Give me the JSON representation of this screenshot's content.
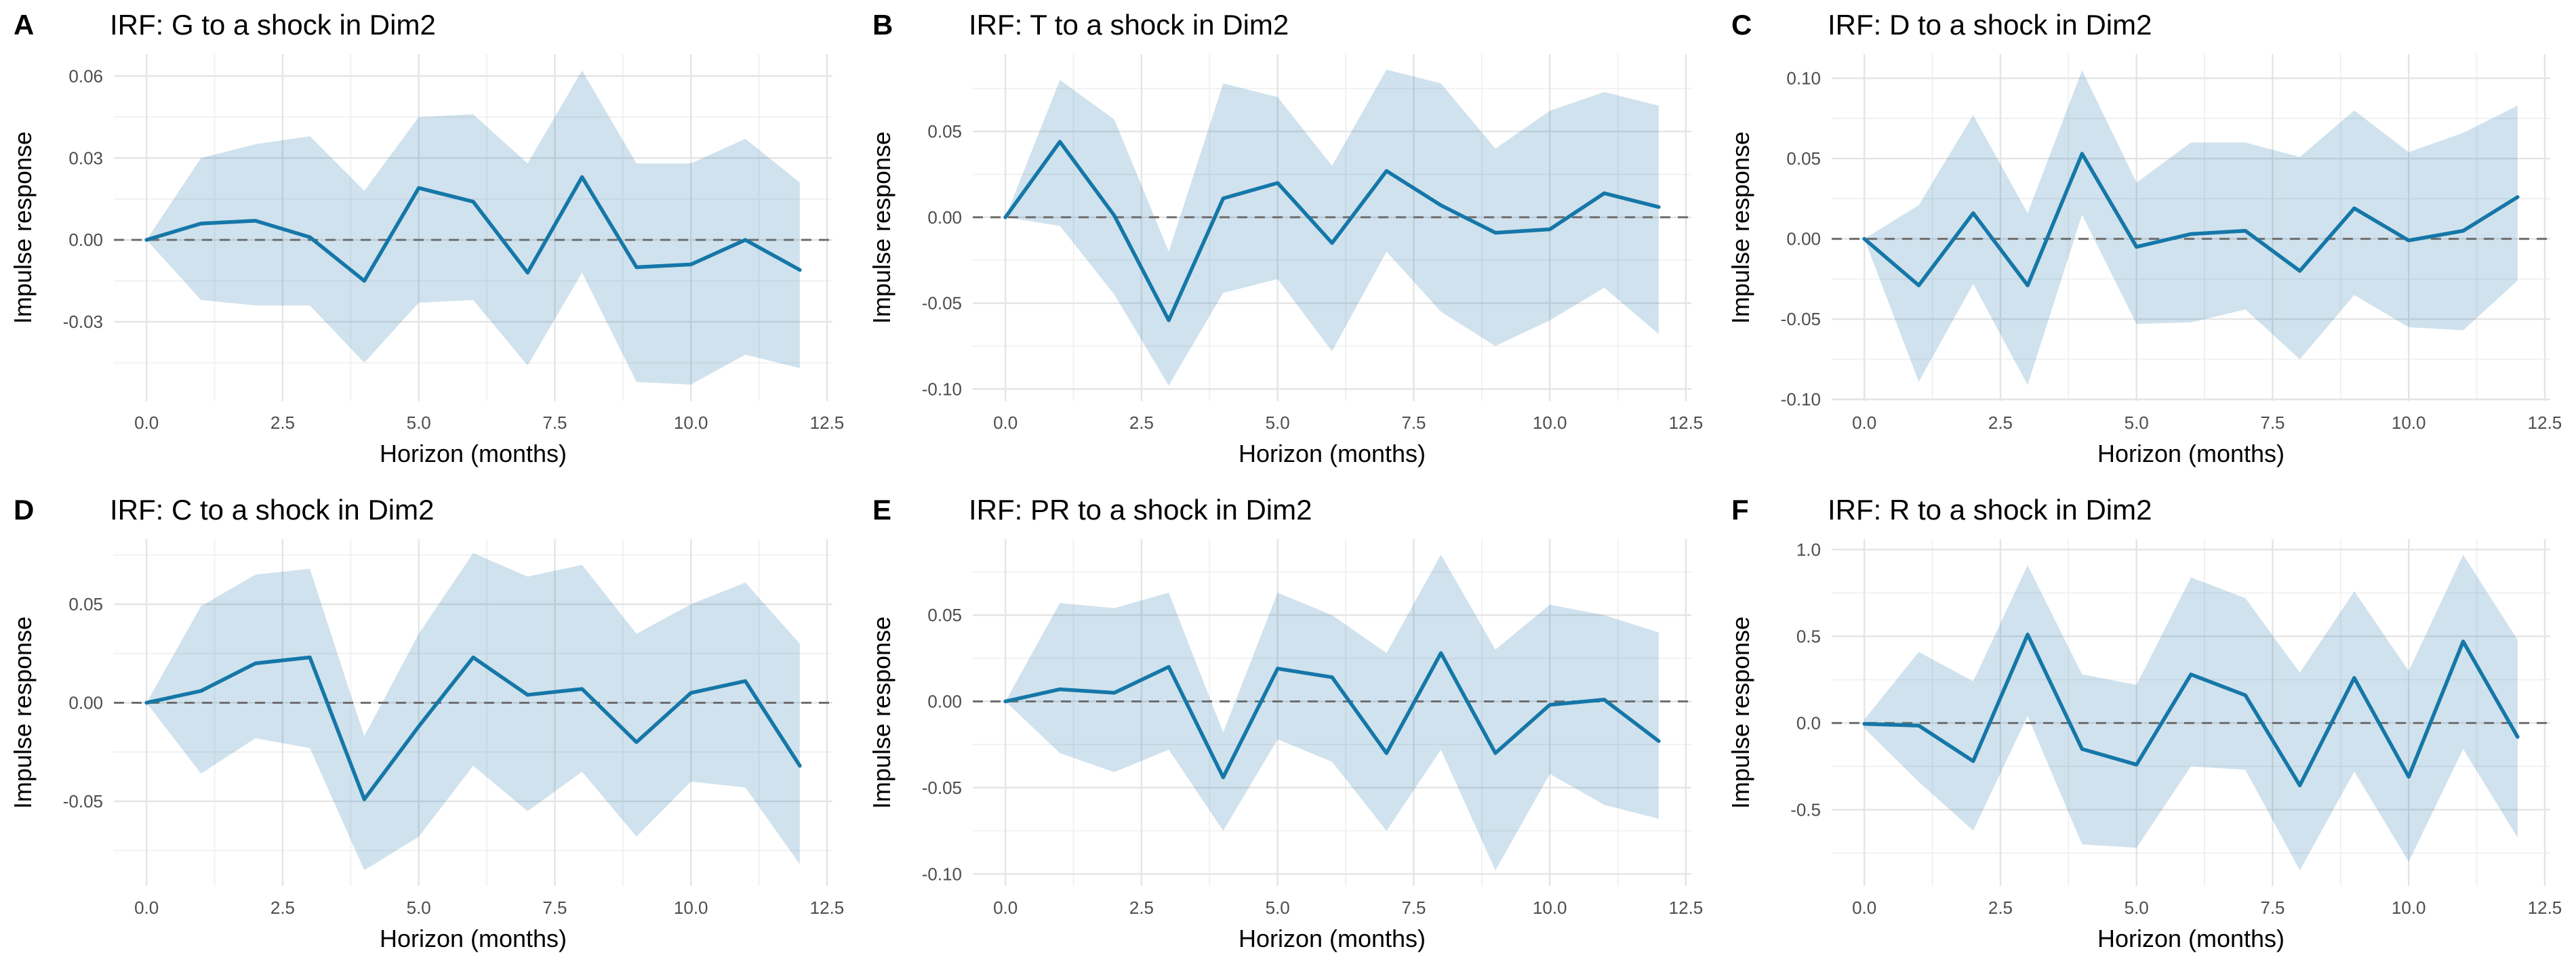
{
  "figure": {
    "background": "#ffffff",
    "x_axis_label": "Horizon (months)",
    "y_axis_label": "Impulse response",
    "colors": {
      "line": "#1577a8",
      "ribbon_fill": "rgba(31,119,168,0.21)",
      "zero_dash": "#6e6e6e",
      "grid_major": "#e4e4e4",
      "grid_minor": "#f0f0f0",
      "tick_text": "#4d4d4d",
      "title_text": "#000000"
    }
  },
  "chart_data": [
    {
      "type": "line",
      "panel_label": "A",
      "title": "IRF: G to a shock in Dim2",
      "xlabel": "Horizon (months)",
      "ylabel": "Impulse response",
      "x": [
        0,
        1,
        2,
        3,
        4,
        5,
        6,
        7,
        8,
        9,
        10,
        11,
        12
      ],
      "xlim": [
        -0.6,
        12.6
      ],
      "x_ticks": [
        0,
        2.5,
        5,
        7.5,
        10,
        12.5
      ],
      "x_tick_labels": [
        "0.0",
        "2.5",
        "5.0",
        "7.5",
        "10.0",
        "12.5"
      ],
      "x_minor": [
        1.25,
        3.75,
        6.25,
        8.75,
        11.25
      ],
      "ylim": [
        -0.059,
        0.068
      ],
      "y_ticks": [
        -0.03,
        0.0,
        0.03,
        0.06
      ],
      "y_tick_labels": [
        "-0.03",
        "0.00",
        "0.03",
        "0.06"
      ],
      "y_minor": [
        -0.045,
        -0.015,
        0.015,
        0.045
      ],
      "zero_line": 0,
      "series": [
        {
          "name": "mean",
          "values": [
            0,
            0.006,
            0.007,
            0.001,
            -0.015,
            0.019,
            0.014,
            -0.012,
            0.023,
            -0.01,
            -0.009,
            0.0,
            -0.011
          ]
        },
        {
          "name": "upper",
          "values": [
            0,
            0.03,
            0.035,
            0.038,
            0.018,
            0.045,
            0.046,
            0.028,
            0.062,
            0.028,
            0.028,
            0.037,
            0.021
          ]
        },
        {
          "name": "lower",
          "values": [
            0,
            -0.022,
            -0.024,
            -0.024,
            -0.045,
            -0.023,
            -0.022,
            -0.046,
            -0.012,
            -0.052,
            -0.053,
            -0.042,
            -0.047
          ]
        }
      ]
    },
    {
      "type": "line",
      "panel_label": "B",
      "title": "IRF: T to a shock in Dim2",
      "xlabel": "Horizon (months)",
      "ylabel": "Impulse response",
      "x": [
        0,
        1,
        2,
        3,
        4,
        5,
        6,
        7,
        8,
        9,
        10,
        11,
        12
      ],
      "xlim": [
        -0.6,
        12.6
      ],
      "x_ticks": [
        0,
        2.5,
        5,
        7.5,
        10,
        12.5
      ],
      "x_tick_labels": [
        "0.0",
        "2.5",
        "5.0",
        "7.5",
        "10.0",
        "12.5"
      ],
      "x_minor": [
        1.25,
        3.75,
        6.25,
        8.75,
        11.25
      ],
      "ylim": [
        -0.107,
        0.095
      ],
      "y_ticks": [
        -0.1,
        -0.05,
        0.0,
        0.05
      ],
      "y_tick_labels": [
        "-0.10",
        "-0.05",
        "0.00",
        "0.05"
      ],
      "y_minor": [
        -0.075,
        -0.025,
        0.025,
        0.075
      ],
      "zero_line": 0,
      "series": [
        {
          "name": "mean",
          "values": [
            0,
            0.044,
            0.001,
            -0.06,
            0.011,
            0.02,
            -0.015,
            0.027,
            0.007,
            -0.009,
            -0.007,
            0.014,
            0.006
          ]
        },
        {
          "name": "upper",
          "values": [
            0,
            0.08,
            0.057,
            -0.02,
            0.078,
            0.07,
            0.03,
            0.086,
            0.078,
            0.04,
            0.062,
            0.073,
            0.065
          ]
        },
        {
          "name": "lower",
          "values": [
            0,
            -0.005,
            -0.045,
            -0.098,
            -0.044,
            -0.036,
            -0.078,
            -0.02,
            -0.055,
            -0.075,
            -0.06,
            -0.041,
            -0.068
          ]
        }
      ]
    },
    {
      "type": "line",
      "panel_label": "C",
      "title": "IRF: D to a shock in Dim2",
      "xlabel": "Horizon (months)",
      "ylabel": "Impulse response",
      "x": [
        0,
        1,
        2,
        3,
        4,
        5,
        6,
        7,
        8,
        9,
        10,
        11,
        12
      ],
      "xlim": [
        -0.6,
        12.6
      ],
      "x_ticks": [
        0,
        2.5,
        5,
        7.5,
        10,
        12.5
      ],
      "x_tick_labels": [
        "0.0",
        "2.5",
        "5.0",
        "7.5",
        "10.0",
        "12.5"
      ],
      "x_minor": [
        1.25,
        3.75,
        6.25,
        8.75,
        11.25
      ],
      "ylim": [
        -0.101,
        0.115
      ],
      "y_ticks": [
        -0.1,
        -0.05,
        0.0,
        0.05,
        0.1
      ],
      "y_tick_labels": [
        "-0.10",
        "-0.05",
        "0.00",
        "0.05",
        "0.10"
      ],
      "y_minor": [
        -0.075,
        -0.025,
        0.025,
        0.075
      ],
      "zero_line": 0,
      "series": [
        {
          "name": "mean",
          "values": [
            0,
            -0.029,
            0.016,
            -0.029,
            0.053,
            -0.005,
            0.003,
            0.005,
            -0.02,
            0.019,
            -0.001,
            0.005,
            0.026
          ]
        },
        {
          "name": "upper",
          "values": [
            0,
            0.021,
            0.077,
            0.016,
            0.105,
            0.035,
            0.06,
            0.06,
            0.051,
            0.08,
            0.054,
            0.066,
            0.083
          ]
        },
        {
          "name": "lower",
          "values": [
            0,
            -0.089,
            -0.028,
            -0.091,
            0.015,
            -0.053,
            -0.052,
            -0.044,
            -0.075,
            -0.035,
            -0.055,
            -0.057,
            -0.026
          ]
        }
      ]
    },
    {
      "type": "line",
      "panel_label": "D",
      "title": "IRF: C to a shock in Dim2",
      "xlabel": "Horizon (months)",
      "ylabel": "Impulse response",
      "x": [
        0,
        1,
        2,
        3,
        4,
        5,
        6,
        7,
        8,
        9,
        10,
        11,
        12
      ],
      "xlim": [
        -0.6,
        12.6
      ],
      "x_ticks": [
        0,
        2.5,
        5,
        7.5,
        10,
        12.5
      ],
      "x_tick_labels": [
        "0.0",
        "2.5",
        "5.0",
        "7.5",
        "10.0",
        "12.5"
      ],
      "x_minor": [
        1.25,
        3.75,
        6.25,
        8.75,
        11.25
      ],
      "ylim": [
        -0.093,
        0.083
      ],
      "y_ticks": [
        -0.05,
        0.0,
        0.05
      ],
      "y_tick_labels": [
        "-0.05",
        "0.00",
        "0.05"
      ],
      "y_minor": [
        -0.075,
        -0.025,
        0.025,
        0.075
      ],
      "zero_line": 0,
      "series": [
        {
          "name": "mean",
          "values": [
            0,
            0.006,
            0.02,
            0.023,
            -0.049,
            -0.012,
            0.023,
            0.004,
            0.007,
            -0.02,
            0.005,
            0.011,
            -0.032
          ]
        },
        {
          "name": "upper",
          "values": [
            0,
            0.049,
            0.065,
            0.068,
            -0.017,
            0.035,
            0.076,
            0.064,
            0.07,
            0.035,
            0.05,
            0.061,
            0.03
          ]
        },
        {
          "name": "lower",
          "values": [
            0,
            -0.036,
            -0.018,
            -0.023,
            -0.085,
            -0.068,
            -0.032,
            -0.055,
            -0.035,
            -0.068,
            -0.04,
            -0.043,
            -0.082
          ]
        }
      ]
    },
    {
      "type": "line",
      "panel_label": "E",
      "title": "IRF: PR to a shock in Dim2",
      "xlabel": "Horizon (months)",
      "ylabel": "Impulse response",
      "x": [
        0,
        1,
        2,
        3,
        4,
        5,
        6,
        7,
        8,
        9,
        10,
        11,
        12
      ],
      "xlim": [
        -0.6,
        12.6
      ],
      "x_ticks": [
        0,
        2.5,
        5,
        7.5,
        10,
        12.5
      ],
      "x_tick_labels": [
        "0.0",
        "2.5",
        "5.0",
        "7.5",
        "10.0",
        "12.5"
      ],
      "x_minor": [
        1.25,
        3.75,
        6.25,
        8.75,
        11.25
      ],
      "ylim": [
        -0.107,
        0.094
      ],
      "y_ticks": [
        -0.1,
        -0.05,
        0.0,
        0.05
      ],
      "y_tick_labels": [
        "-0.10",
        "-0.05",
        "0.00",
        "0.05"
      ],
      "y_minor": [
        -0.075,
        -0.025,
        0.025,
        0.075
      ],
      "zero_line": 0,
      "series": [
        {
          "name": "mean",
          "values": [
            0,
            0.007,
            0.005,
            0.02,
            -0.044,
            0.019,
            0.014,
            -0.03,
            0.028,
            -0.03,
            -0.002,
            0.001,
            -0.023
          ]
        },
        {
          "name": "upper",
          "values": [
            0,
            0.057,
            0.054,
            0.063,
            -0.018,
            0.063,
            0.05,
            0.028,
            0.085,
            0.03,
            0.056,
            0.05,
            0.04
          ]
        },
        {
          "name": "lower",
          "values": [
            0,
            -0.03,
            -0.041,
            -0.028,
            -0.075,
            -0.022,
            -0.035,
            -0.075,
            -0.028,
            -0.098,
            -0.042,
            -0.06,
            -0.068
          ]
        }
      ]
    },
    {
      "type": "line",
      "panel_label": "F",
      "title": "IRF: R to a shock in Dim2",
      "xlabel": "Horizon (months)",
      "ylabel": "Impulse response",
      "x": [
        0,
        1,
        2,
        3,
        4,
        5,
        6,
        7,
        8,
        9,
        10,
        11,
        12
      ],
      "xlim": [
        -0.6,
        12.6
      ],
      "x_ticks": [
        0,
        2.5,
        5,
        7.5,
        10,
        12.5
      ],
      "x_tick_labels": [
        "0.0",
        "2.5",
        "5.0",
        "7.5",
        "10.0",
        "12.5"
      ],
      "x_minor": [
        1.25,
        3.75,
        6.25,
        8.75,
        11.25
      ],
      "ylim": [
        -0.94,
        1.06
      ],
      "y_ticks": [
        -0.5,
        0.0,
        0.5,
        1.0
      ],
      "y_tick_labels": [
        "-0.5",
        "0.0",
        "0.5",
        "1.0"
      ],
      "y_minor": [
        -0.75,
        -0.25,
        0.25,
        0.75
      ],
      "zero_line": 0,
      "series": [
        {
          "name": "mean",
          "values": [
            -0.005,
            -0.015,
            -0.22,
            0.51,
            -0.15,
            -0.24,
            0.28,
            0.16,
            -0.36,
            0.26,
            -0.31,
            0.47,
            -0.08
          ]
        },
        {
          "name": "upper",
          "values": [
            0.02,
            0.41,
            0.24,
            0.91,
            0.28,
            0.22,
            0.84,
            0.72,
            0.29,
            0.76,
            0.3,
            0.97,
            0.48
          ]
        },
        {
          "name": "lower",
          "values": [
            -0.03,
            -0.34,
            -0.62,
            0.04,
            -0.7,
            -0.72,
            -0.25,
            -0.27,
            -0.85,
            -0.28,
            -0.8,
            -0.15,
            -0.66
          ]
        }
      ]
    }
  ]
}
